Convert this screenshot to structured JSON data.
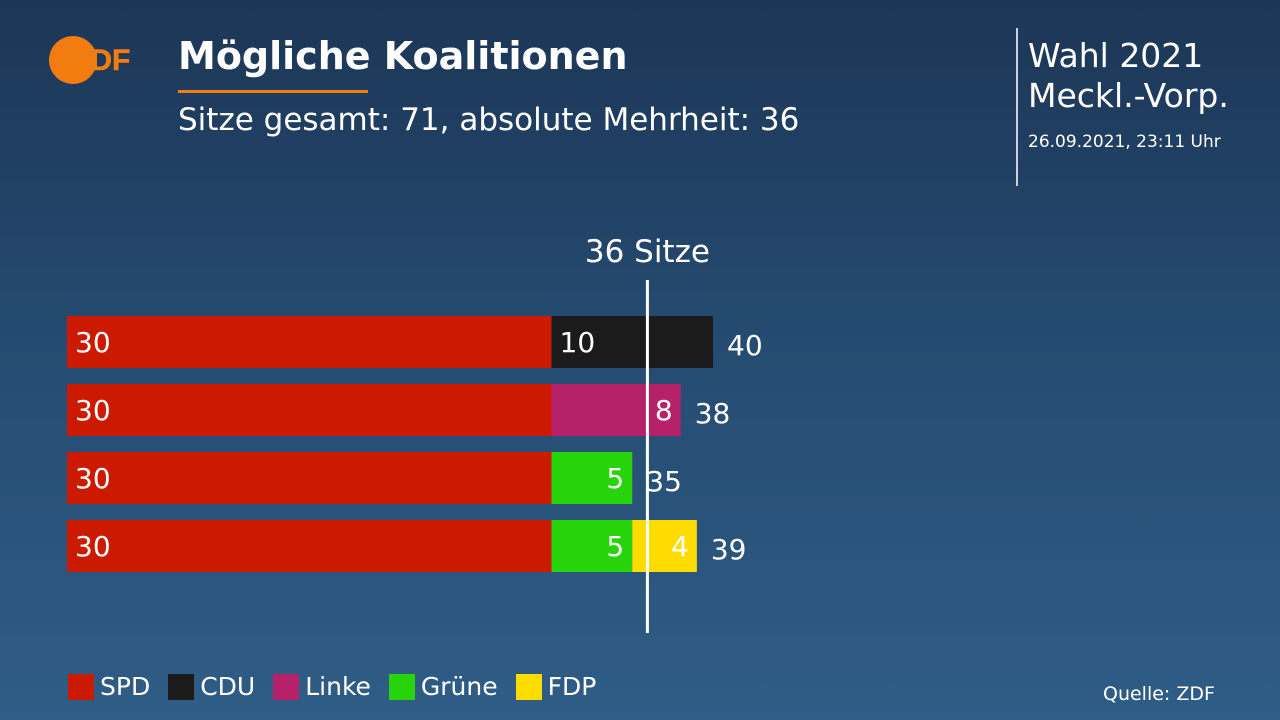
{
  "header": {
    "logo_text": "ZDF",
    "title": "Mögliche Koalitionen",
    "subtitle": "Sitze gesamt: 71, absolute Mehrheit: 36"
  },
  "election": {
    "line1": "Wahl 2021",
    "line2": "Meckl.-Vorp.",
    "date": "26.09.2021, 23:11 Uhr"
  },
  "colors": {
    "SPD": "#cc1a00",
    "CDU": "#1b1b1b",
    "Linke": "#b7216a",
    "Grüne": "#27d40c",
    "FDP": "#ffdc00",
    "accent": "#f27c0f"
  },
  "legend": [
    {
      "party": "SPD",
      "label": "SPD"
    },
    {
      "party": "CDU",
      "label": "CDU"
    },
    {
      "party": "Linke",
      "label": "Linke"
    },
    {
      "party": "Grüne",
      "label": "Grüne"
    },
    {
      "party": "FDP",
      "label": "FDP"
    }
  ],
  "chart_data": {
    "type": "bar",
    "orientation": "horizontal",
    "stacked": true,
    "majority_value": 36,
    "majority_label": "36 Sitze",
    "total_seats": 71,
    "rows": [
      {
        "segments": [
          {
            "party": "SPD",
            "value": 30
          },
          {
            "party": "CDU",
            "value": 10
          }
        ],
        "total": 40
      },
      {
        "segments": [
          {
            "party": "SPD",
            "value": 30
          },
          {
            "party": "Linke",
            "value": 8
          }
        ],
        "total": 38
      },
      {
        "segments": [
          {
            "party": "SPD",
            "value": 30
          },
          {
            "party": "Grüne",
            "value": 5
          }
        ],
        "total": 35
      },
      {
        "segments": [
          {
            "party": "SPD",
            "value": 30
          },
          {
            "party": "Grüne",
            "value": 5
          },
          {
            "party": "FDP",
            "value": 4
          }
        ],
        "total": 39
      }
    ]
  },
  "footer": {
    "source": "Quelle: ZDF"
  }
}
